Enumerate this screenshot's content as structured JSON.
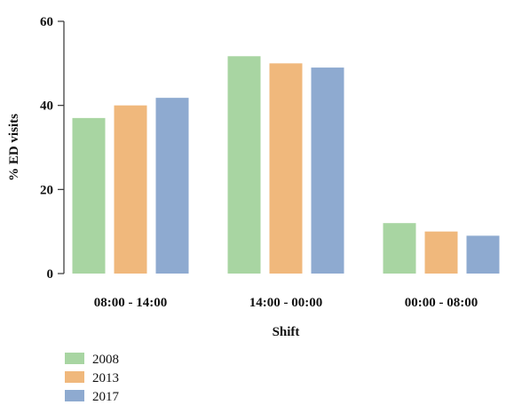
{
  "chart_data": {
    "type": "bar",
    "title": "",
    "xlabel": "Shift",
    "ylabel": "% ED visits",
    "categories": [
      "08:00 - 14:00",
      "14:00 - 00:00",
      "00:00 - 08:00"
    ],
    "series": [
      {
        "name": "2008",
        "values": [
          37,
          51.7,
          12
        ],
        "color": "#a8d5a2"
      },
      {
        "name": "2013",
        "values": [
          40,
          50,
          10
        ],
        "color": "#f0b87c"
      },
      {
        "name": "2017",
        "values": [
          41.8,
          49,
          9
        ],
        "color": "#8eaad0"
      }
    ],
    "ylim": [
      0,
      60
    ],
    "yticks": [
      0,
      20,
      40,
      60
    ],
    "grid": false,
    "legend_position": "bottom-left"
  }
}
